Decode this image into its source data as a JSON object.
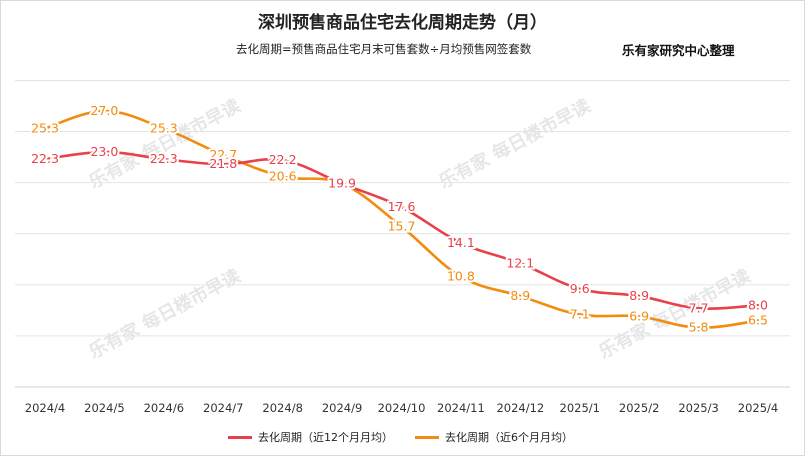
{
  "title": "深圳预售商品住宅去化周期走势（月）",
  "subtitle": "去化周期=预售商品住宅月末可售套数÷月均预售网签套数",
  "source": "乐有家研究中心整理",
  "watermark": "乐有家  每日楼市早读",
  "chart_data": {
    "type": "line",
    "title": "深圳预售商品住宅去化周期走势（月）",
    "xlabel": "",
    "ylabel": "",
    "ylim": [
      0,
      32
    ],
    "grid": "horizontal",
    "legend_position": "bottom",
    "categories": [
      "2024/4",
      "2024/5",
      "2024/6",
      "2024/7",
      "2024/8",
      "2024/9",
      "2024/10",
      "2024/11",
      "2024/12",
      "2025/1",
      "2025/2",
      "2025/3",
      "2025/4"
    ],
    "series": [
      {
        "name": "去化周期（近12个月月均）",
        "color": "#e8414a",
        "values": [
          22.3,
          23.0,
          22.3,
          21.8,
          22.2,
          19.9,
          17.6,
          14.1,
          12.1,
          9.6,
          8.9,
          7.7,
          8.0
        ],
        "labels": [
          "22.3",
          "23.0",
          "22.3",
          "21.8",
          "22.2",
          "19.9",
          "17.6",
          "14.1",
          "12.1",
          "9.6",
          "8.9",
          "7.7",
          "8.0"
        ]
      },
      {
        "name": "去化周期（近6个月月均）",
        "color": "#f28c0f",
        "values": [
          25.3,
          27.0,
          25.3,
          22.7,
          20.6,
          19.9,
          15.7,
          10.8,
          8.9,
          7.1,
          6.9,
          5.8,
          6.5
        ],
        "labels": [
          "25.3",
          "27.0",
          "25.3",
          "22.7",
          "20.6",
          "19.9",
          "15.7",
          "10.8",
          "8.9",
          "7.1",
          "6.9",
          "5.8",
          "6.5"
        ]
      }
    ]
  }
}
